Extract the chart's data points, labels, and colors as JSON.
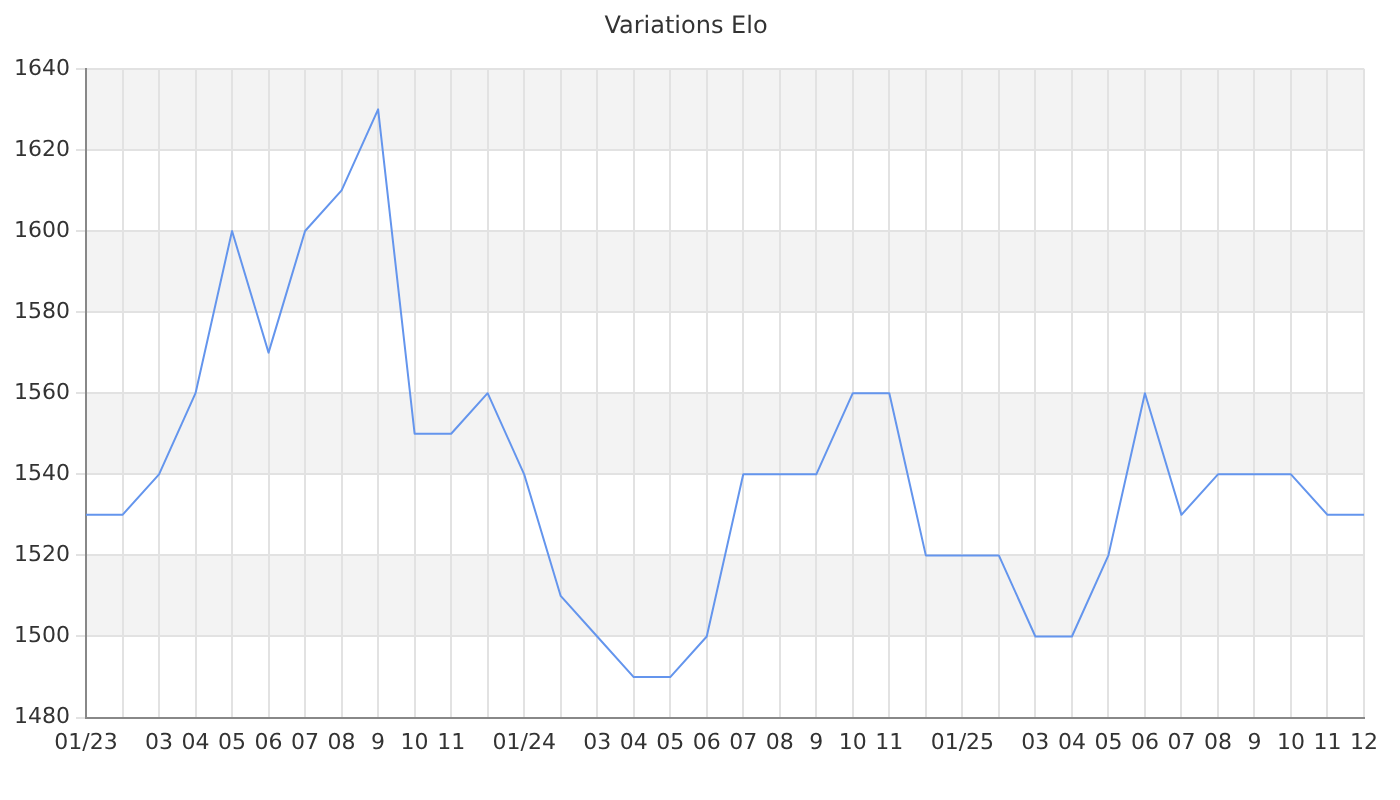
{
  "chart_data": {
    "type": "line",
    "title": "Variations Elo",
    "categories": [
      "01/23",
      null,
      "03",
      "04",
      "05",
      "06",
      "07",
      "08",
      "9",
      "10",
      "11",
      null,
      "01/24",
      null,
      "03",
      "04",
      "05",
      "06",
      "07",
      "08",
      "9",
      "10",
      "11",
      null,
      "01/25",
      null,
      "03",
      "04",
      "05",
      "06",
      "07",
      "08",
      "9",
      "10",
      "11",
      "12"
    ],
    "series": [
      {
        "color": "#6495ed",
        "values": [
          1530,
          1530,
          1540,
          1560,
          1600,
          1570,
          1600,
          1610,
          1630,
          1550,
          1550,
          1560,
          1540,
          1510,
          1500,
          1490,
          1490,
          1500,
          1540,
          1540,
          1540,
          1560,
          1560,
          1520,
          1520,
          1520,
          1500,
          1500,
          1520,
          1560,
          1530,
          1540,
          1540,
          1540,
          1530,
          1530
        ]
      }
    ],
    "ylim": [
      1480,
      1640
    ],
    "yticks": [
      1480,
      1500,
      1520,
      1540,
      1560,
      1580,
      1600,
      1620,
      1640
    ],
    "grid": true,
    "legend": false,
    "marker": "none",
    "line_style": "solid"
  }
}
